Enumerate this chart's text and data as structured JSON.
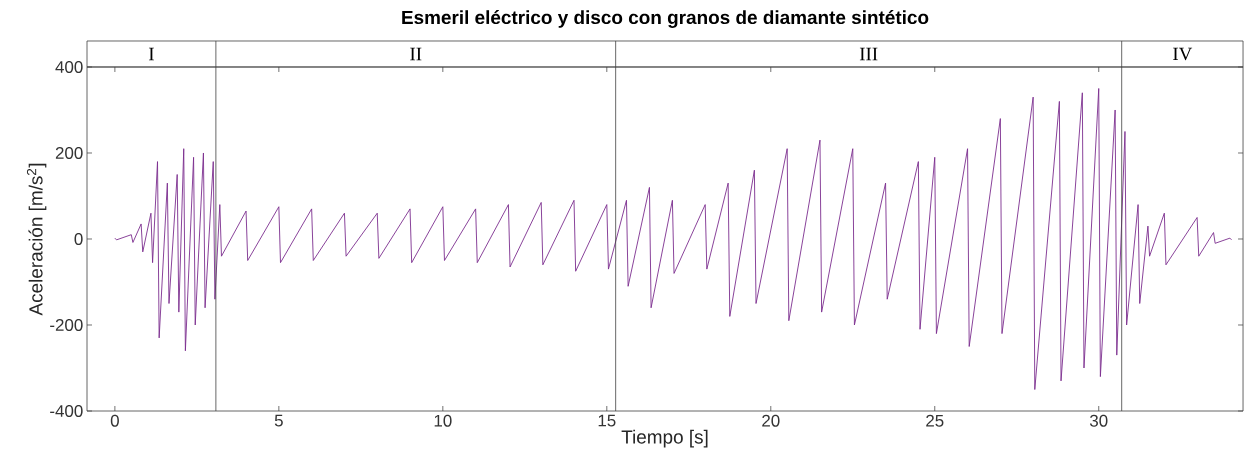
{
  "chart_data": {
    "type": "line",
    "title": "Esmeril eléctrico y disco con granos de diamante sintético",
    "xlabel": "Tiempo [s]",
    "ylabel": "Aceleración [m/s$^{2}$]",
    "xlim": [
      -0.85,
      34.4
    ],
    "ylim": [
      -400,
      400
    ],
    "xticks": [
      0,
      5,
      10,
      15,
      20,
      25,
      30
    ],
    "yticks": [
      -400,
      -200,
      0,
      200,
      400
    ],
    "grid": false,
    "marker": "none",
    "line_style": "solid",
    "series": [
      {
        "color": "#7b2d8e",
        "x": [
          0.0,
          0.05,
          0.5,
          0.55,
          0.8,
          0.85,
          1.1,
          1.15,
          1.3,
          1.35,
          1.6,
          1.65,
          1.9,
          1.95,
          2.1,
          2.15,
          2.4,
          2.45,
          2.7,
          2.75,
          3.0,
          3.05,
          3.2,
          3.25,
          4,
          4.05,
          5,
          5.05,
          6,
          6.05,
          7,
          7.05,
          8,
          8.05,
          9,
          9.05,
          10,
          10.05,
          11,
          11.05,
          12,
          12.05,
          13,
          13.05,
          14,
          14.05,
          15,
          15.05,
          15.6,
          15.65,
          16.3,
          16.35,
          17,
          17.05,
          18,
          18.05,
          18.7,
          18.75,
          19.5,
          19.55,
          20.5,
          20.55,
          21.5,
          21.55,
          22.5,
          22.55,
          23.5,
          23.55,
          24.5,
          24.55,
          25,
          25.05,
          26,
          26.05,
          27,
          27.05,
          28,
          28.05,
          28.8,
          28.85,
          29.5,
          29.55,
          30,
          30.05,
          30.5,
          30.55,
          30.8,
          30.85,
          31.2,
          31.25,
          31.5,
          31.55,
          32,
          32.05,
          33,
          33.05,
          33.5,
          33.55,
          34,
          34.05
        ],
        "values": [
          2,
          -2,
          10,
          -8,
          35,
          -30,
          60,
          -55,
          180,
          -230,
          130,
          -150,
          150,
          -170,
          210,
          -260,
          190,
          -200,
          200,
          -160,
          180,
          -140,
          80,
          -40,
          65,
          -50,
          75,
          -55,
          70,
          -50,
          60,
          -40,
          60,
          -45,
          70,
          -55,
          75,
          -50,
          70,
          -55,
          80,
          -65,
          85,
          -60,
          90,
          -75,
          80,
          -70,
          90,
          -110,
          120,
          -160,
          90,
          -80,
          80,
          -70,
          130,
          -180,
          160,
          -150,
          210,
          -190,
          230,
          -170,
          210,
          -200,
          130,
          -140,
          180,
          -210,
          190,
          -220,
          210,
          -250,
          280,
          -220,
          330,
          -350,
          320,
          -330,
          340,
          -300,
          350,
          -320,
          300,
          -270,
          250,
          -200,
          80,
          -150,
          30,
          -40,
          60,
          -60,
          50,
          -40,
          15,
          -10,
          2,
          -2
        ]
      }
    ],
    "ref_lines": [
      {
        "axis": "x",
        "value": 3.08
      },
      {
        "axis": "x",
        "value": 15.27
      },
      {
        "axis": "x",
        "value": 30.7
      }
    ],
    "annotations": [
      "I",
      "II",
      "III",
      "IV"
    ]
  }
}
